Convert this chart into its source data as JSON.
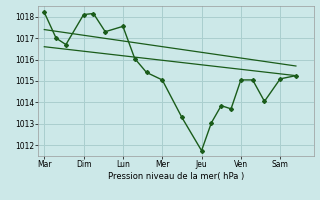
{
  "title": "",
  "xlabel": "Pression niveau de la mer( hPa )",
  "day_labels": [
    "Mar",
    "Dim",
    "Lun",
    "Mer",
    "Jeu",
    "Ven",
    "Sam"
  ],
  "day_positions": [
    0,
    1,
    2,
    3,
    4,
    5,
    6
  ],
  "ylim": [
    1011.5,
    1018.5
  ],
  "yticks": [
    1012,
    1013,
    1014,
    1015,
    1016,
    1017,
    1018
  ],
  "line_color": "#1a5c1a",
  "bg_color": "#cce8e8",
  "grid_color": "#aacece",
  "main_x": [
    0.0,
    0.3,
    0.55,
    1.0,
    1.25,
    1.55,
    2.0,
    2.3,
    2.6,
    3.0,
    3.5,
    4.0,
    4.25,
    4.5,
    4.75,
    5.0,
    5.3,
    5.6,
    6.0,
    6.4
  ],
  "main_y": [
    1018.2,
    1017.0,
    1016.7,
    1018.1,
    1018.15,
    1017.3,
    1017.55,
    1016.05,
    1015.4,
    1015.05,
    1013.3,
    1011.75,
    1013.05,
    1013.85,
    1013.7,
    1015.05,
    1015.05,
    1014.05,
    1015.1,
    1015.25
  ],
  "trend1_x": [
    0.0,
    6.4
  ],
  "trend1_y": [
    1017.4,
    1015.7
  ],
  "trend2_x": [
    0.0,
    6.4
  ],
  "trend2_y": [
    1016.6,
    1015.25
  ],
  "xlim": [
    -0.15,
    6.85
  ]
}
